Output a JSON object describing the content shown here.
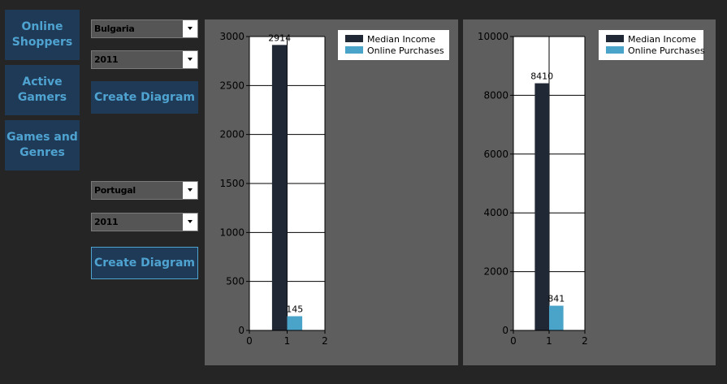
{
  "nav": [
    {
      "label": "Online\nShoppers"
    },
    {
      "label": "Active\nGamers"
    },
    {
      "label": "Games and\nGenres"
    }
  ],
  "group1": {
    "country": "Bulgaria",
    "year": "2011",
    "create_label": "Create Diagram"
  },
  "group2": {
    "country": "Portugal",
    "year": "2011",
    "create_label": "Create Diagram"
  },
  "colors": {
    "median_income": "#202735",
    "online_purchases": "#4aa3c8"
  },
  "chart_data": [
    {
      "type": "bar",
      "x_ticks": [
        "0",
        "1",
        "2"
      ],
      "xlim": [
        0,
        2
      ],
      "ylim": [
        0,
        3000
      ],
      "y_ticks": [
        "0",
        "500",
        "1000",
        "1500",
        "2000",
        "2500",
        "3000"
      ],
      "series": [
        {
          "name": "Median Income",
          "x": 0.8,
          "value": 2914,
          "label": "2914"
        },
        {
          "name": "Online Purchases",
          "x": 1.2,
          "value": 145,
          "label": "145"
        }
      ],
      "legend": "top-right"
    },
    {
      "type": "bar",
      "x_ticks": [
        "0",
        "1",
        "2"
      ],
      "xlim": [
        0,
        2
      ],
      "ylim": [
        0,
        10000
      ],
      "y_ticks": [
        "0",
        "2000",
        "4000",
        "6000",
        "8000",
        "10000"
      ],
      "series": [
        {
          "name": "Median Income",
          "x": 0.8,
          "value": 8410,
          "label": "8410"
        },
        {
          "name": "Online Purchases",
          "x": 1.2,
          "value": 841,
          "label": "841"
        }
      ],
      "legend": "top-right"
    }
  ]
}
